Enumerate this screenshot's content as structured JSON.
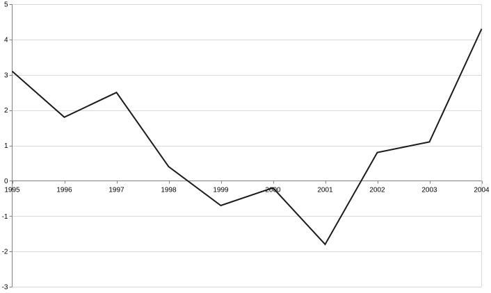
{
  "chart_data": {
    "type": "line",
    "title": "",
    "xlabel": "",
    "ylabel": "",
    "categories": [
      "1995",
      "1996",
      "1997",
      "1998",
      "1999",
      "2000",
      "2001",
      "2002",
      "2003",
      "2004"
    ],
    "series": [
      {
        "values": [
          3.1,
          1.8,
          2.5,
          0.4,
          -0.7,
          -0.2,
          -1.8,
          0.8,
          1.1,
          4.3
        ]
      }
    ],
    "ylim": [
      -3,
      5
    ],
    "yticks": [
      "-3",
      "-2",
      "-1",
      "0",
      "1",
      "2",
      "3",
      "4",
      "5"
    ],
    "grid": "horizontal",
    "legend": "none",
    "colors": {
      "line": "#1a1a1a",
      "grid": "#d9d9d9",
      "axis": "#808080"
    }
  }
}
